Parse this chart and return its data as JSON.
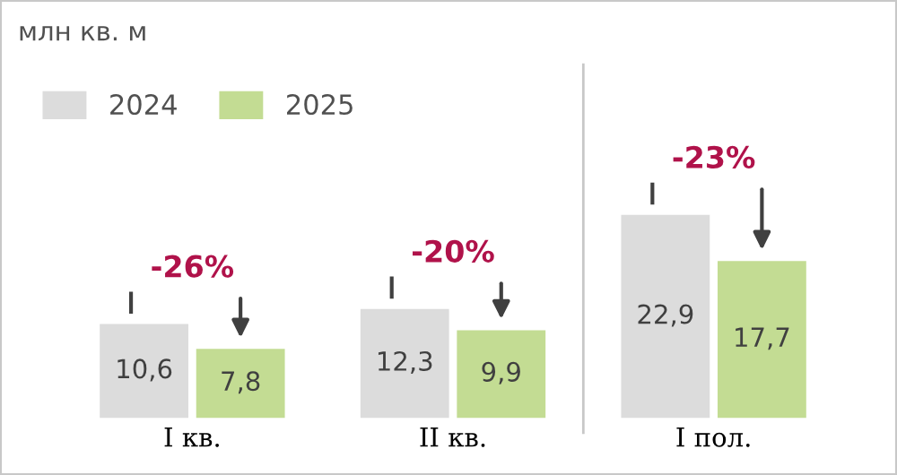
{
  "chart_data": {
    "type": "bar",
    "title": "млн кв. м",
    "categories": [
      "I кв.",
      "II кв.",
      "I пол."
    ],
    "series": [
      {
        "name": "2024",
        "color": "#dcdcdc",
        "values": [
          10.6,
          12.3,
          22.9
        ],
        "value_labels": [
          "10,6",
          "12,3",
          "22,9"
        ]
      },
      {
        "name": "2025",
        "color": "#c3dc93",
        "values": [
          7.8,
          9.9,
          17.7
        ],
        "value_labels": [
          "7,8",
          "9,9",
          "17,7"
        ]
      }
    ],
    "legend": "top left",
    "grid": false,
    "annotations": [
      {
        "text": "-26%",
        "x": "I кв.",
        "y": 10.6
      },
      {
        "text": "-20%",
        "x": "II кв.",
        "y": 12.3
      },
      {
        "text": "-23%",
        "x": "I пол.",
        "y": 22.9
      }
    ]
  }
}
